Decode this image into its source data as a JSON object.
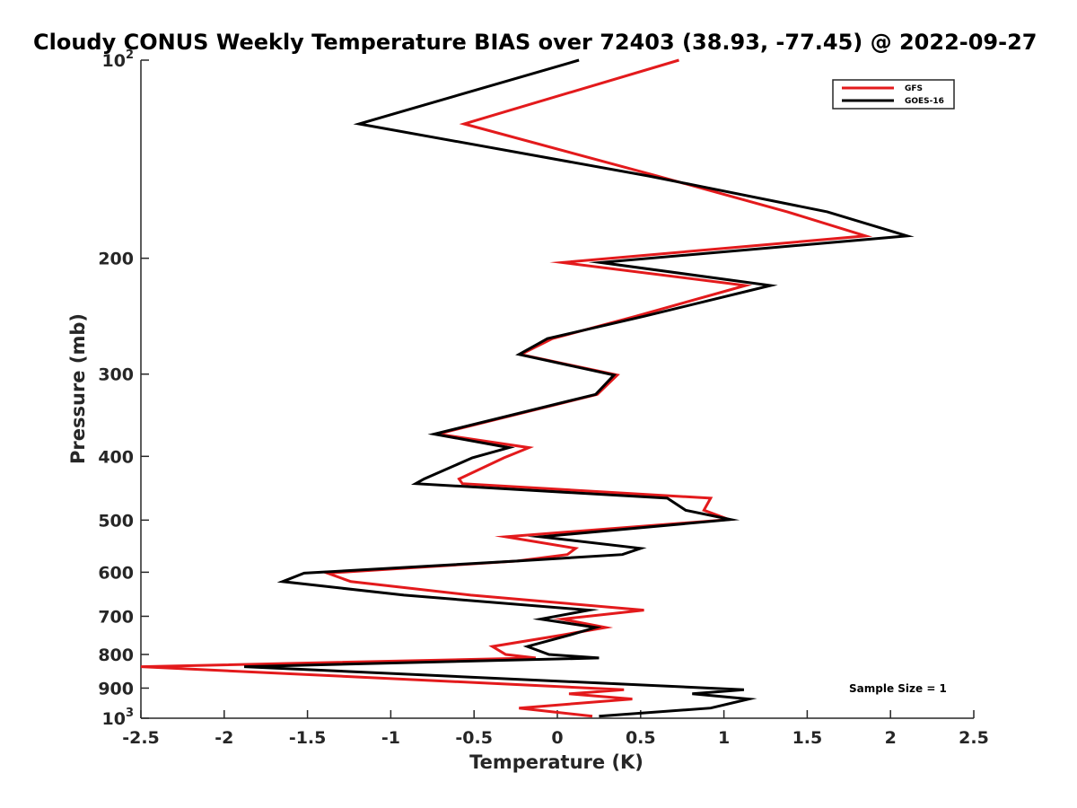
{
  "chart_data": {
    "type": "line",
    "title": "Cloudy CONUS Weekly Temperature BIAS over 72403 (38.93, -77.45) @ 2022-09-27",
    "xlabel": "Temperature (K)",
    "ylabel": "Pressure (mb)",
    "xlim": [
      -2.5,
      2.5
    ],
    "ylim": [
      100,
      1000
    ],
    "yscale": "log",
    "y_reversed": true,
    "grid": false,
    "legend_position": "top-right",
    "annotation": "Sample Size = 1",
    "x_ticks": [
      "-2.5",
      "-2",
      "-1.5",
      "-1",
      "-0.5",
      "0",
      "0.5",
      "1",
      "1.5",
      "2",
      "2.5"
    ],
    "x_tick_values": [
      -2.5,
      -2,
      -1.5,
      -1,
      -0.5,
      0,
      0.5,
      1,
      1.5,
      2,
      2.5
    ],
    "y_ticks": [
      {
        "value": 100,
        "base": "10",
        "exp": "2"
      },
      {
        "value": 200,
        "label": "200"
      },
      {
        "value": 300,
        "label": "300"
      },
      {
        "value": 400,
        "label": "400"
      },
      {
        "value": 500,
        "label": "500"
      },
      {
        "value": 600,
        "label": "600"
      },
      {
        "value": 700,
        "label": "700"
      },
      {
        "value": 800,
        "label": "800"
      },
      {
        "value": 900,
        "label": "900"
      },
      {
        "value": 1000,
        "base": "10",
        "exp": "3"
      }
    ],
    "series": [
      {
        "name": "GFS",
        "color": "#e31a1c",
        "points": [
          [
            0.73,
            100
          ],
          [
            -0.56,
            125
          ],
          [
            0.6,
            150
          ],
          [
            1.38,
            170
          ],
          [
            1.85,
            185
          ],
          [
            0.03,
            203
          ],
          [
            1.13,
            220
          ],
          [
            0.47,
            245
          ],
          [
            -0.03,
            265
          ],
          [
            -0.22,
            280
          ],
          [
            0.36,
            301
          ],
          [
            0.24,
            322
          ],
          [
            -0.72,
            370
          ],
          [
            -0.17,
            388
          ],
          [
            -0.32,
            402
          ],
          [
            -0.59,
            433
          ],
          [
            -0.57,
            440
          ],
          [
            0.92,
            463
          ],
          [
            0.88,
            483
          ],
          [
            1.03,
            499
          ],
          [
            -0.31,
            530
          ],
          [
            0.11,
            552
          ],
          [
            0.06,
            564
          ],
          [
            -0.24,
            577
          ],
          [
            -1.38,
            602
          ],
          [
            -1.24,
            620
          ],
          [
            -0.52,
            650
          ],
          [
            0.52,
            685
          ],
          [
            0.03,
            707
          ],
          [
            0.29,
            728
          ],
          [
            0.02,
            748
          ],
          [
            -0.39,
            778
          ],
          [
            -0.31,
            800
          ],
          [
            -0.13,
            810
          ],
          [
            -2.5,
            835
          ],
          [
            0.4,
            905
          ],
          [
            0.07,
            918
          ],
          [
            0.45,
            935
          ],
          [
            -0.23,
            965
          ],
          [
            0.21,
            993
          ]
        ]
      },
      {
        "name": "GOES-16",
        "color": "#000000",
        "points": [
          [
            0.13,
            100
          ],
          [
            -1.19,
            125
          ],
          [
            0.55,
            150
          ],
          [
            1.62,
            170
          ],
          [
            2.1,
            185
          ],
          [
            0.26,
            203
          ],
          [
            1.28,
            220
          ],
          [
            0.52,
            245
          ],
          [
            -0.06,
            265
          ],
          [
            -0.23,
            280
          ],
          [
            0.34,
            301
          ],
          [
            0.23,
            322
          ],
          [
            -0.74,
            370
          ],
          [
            -0.29,
            388
          ],
          [
            -0.51,
            402
          ],
          [
            -0.8,
            433
          ],
          [
            -0.85,
            440
          ],
          [
            0.66,
            463
          ],
          [
            0.77,
            483
          ],
          [
            1.04,
            499
          ],
          [
            -0.1,
            530
          ],
          [
            0.5,
            552
          ],
          [
            0.39,
            564
          ],
          [
            -0.24,
            577
          ],
          [
            -1.52,
            602
          ],
          [
            -1.65,
            620
          ],
          [
            -0.92,
            650
          ],
          [
            0.19,
            685
          ],
          [
            -0.1,
            707
          ],
          [
            0.23,
            728
          ],
          [
            0.07,
            748
          ],
          [
            -0.18,
            778
          ],
          [
            -0.05,
            800
          ],
          [
            0.25,
            810
          ],
          [
            -1.88,
            835
          ],
          [
            1.12,
            905
          ],
          [
            0.81,
            918
          ],
          [
            1.15,
            935
          ],
          [
            0.92,
            965
          ],
          [
            0.25,
            993
          ]
        ]
      }
    ]
  }
}
